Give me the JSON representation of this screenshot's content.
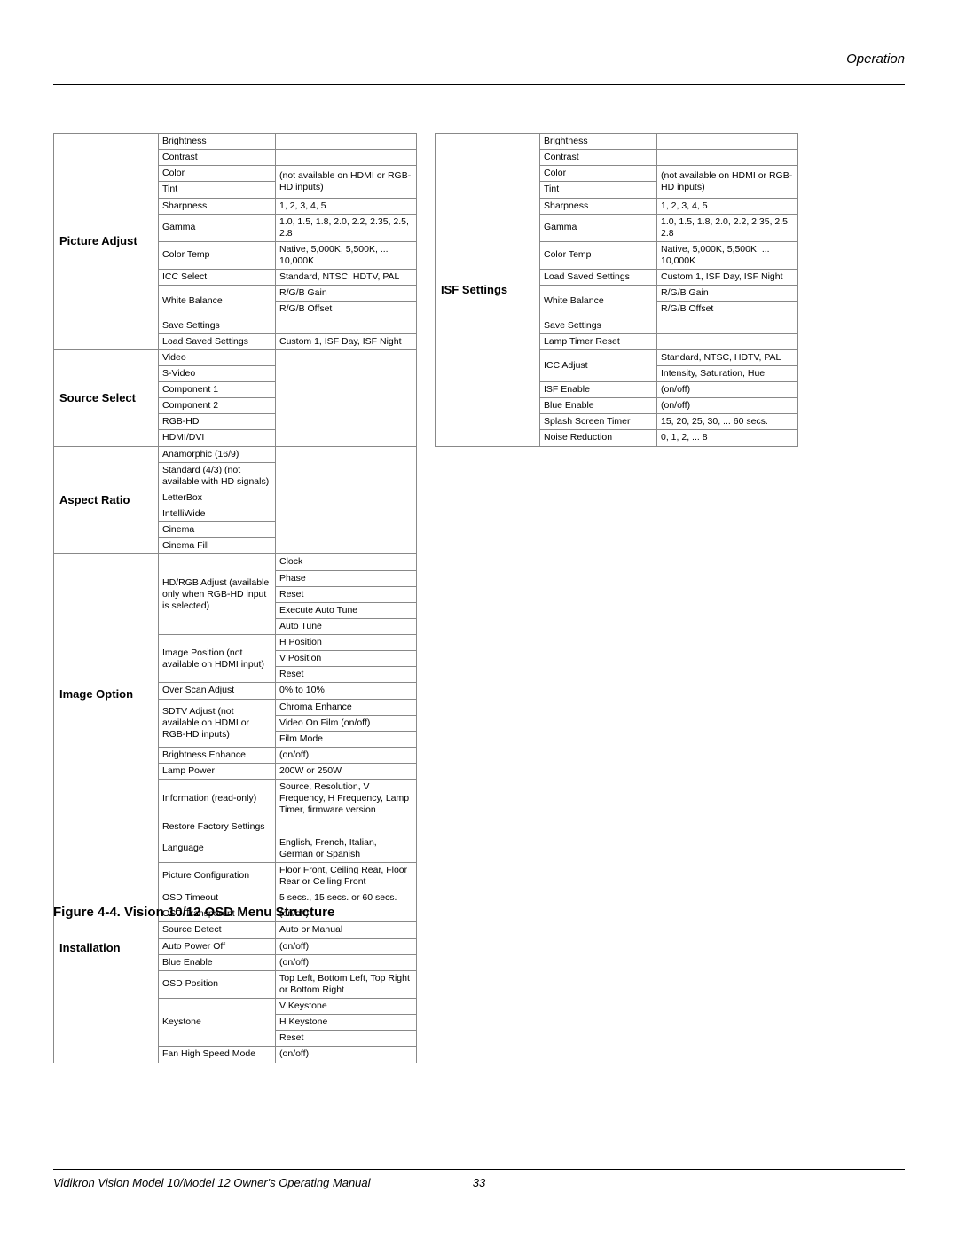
{
  "header": {
    "label": "Operation"
  },
  "footer": {
    "left": "Vidikron Vision Model 10/Model 12 Owner's Operating Manual",
    "page": "33"
  },
  "caption": "Figure 4-4. Vision 10/12 OSD Menu Structure",
  "left_sections": [
    {
      "title": "Picture Adjust",
      "rows": [
        {
          "name": "Brightness",
          "val": ""
        },
        {
          "name": "Contrast",
          "val": ""
        },
        {
          "name": "Color",
          "val": "(not available on HDMI or RGB-HD inputs)",
          "merge_val": 2
        },
        {
          "name": "Tint"
        },
        {
          "name": "Sharpness",
          "val": "1, 2, 3, 4, 5"
        },
        {
          "name": "Gamma",
          "val": "1.0, 1.5, 1.8, 2.0, 2.2, 2.35, 2.5, 2.8"
        },
        {
          "name": "Color Temp",
          "val": "Native, 5,000K, 5,500K, ... 10,000K"
        },
        {
          "name": "ICC Select",
          "val": "Standard, NTSC, HDTV, PAL"
        },
        {
          "name": "White Balance",
          "merge_name": 2,
          "val": "R/G/B Gain"
        },
        {
          "val": "R/G/B Offset"
        },
        {
          "name": "Save Settings",
          "val": ""
        },
        {
          "name": "Load Saved Settings",
          "val": "Custom 1, ISF Day, ISF Night"
        }
      ]
    },
    {
      "title": "Source Select",
      "rows": [
        {
          "name": "Video",
          "val": "",
          "merge_val": 6
        },
        {
          "name": "S-Video"
        },
        {
          "name": "Component 1"
        },
        {
          "name": "Component 2"
        },
        {
          "name": "RGB-HD"
        },
        {
          "name": "HDMI/DVI"
        }
      ]
    },
    {
      "title": "Aspect Ratio",
      "rows": [
        {
          "name": "Anamorphic (16/9)",
          "val": "",
          "merge_val": 6
        },
        {
          "name": "Standard (4/3) (not available with HD signals)"
        },
        {
          "name": "LetterBox"
        },
        {
          "name": "IntelliWide"
        },
        {
          "name": "Cinema"
        },
        {
          "name": "Cinema Fill"
        }
      ]
    },
    {
      "title": "Image Option",
      "rows": [
        {
          "name": "HD/RGB Adjust (available only when RGB-HD input is selected)",
          "merge_name": 5,
          "val": "Clock"
        },
        {
          "val": "Phase"
        },
        {
          "val": "Reset"
        },
        {
          "val": "Execute Auto Tune"
        },
        {
          "val": "Auto Tune"
        },
        {
          "name": "Image Position (not available on HDMI input)",
          "merge_name": 3,
          "val": "H Position"
        },
        {
          "val": "V Position"
        },
        {
          "val": "Reset"
        },
        {
          "name": "Over Scan Adjust",
          "val": "0% to 10%"
        },
        {
          "name": "SDTV Adjust (not available on HDMI or RGB-HD inputs)",
          "merge_name": 3,
          "val": "Chroma Enhance"
        },
        {
          "val": "Video On Film (on/off)"
        },
        {
          "val": "Film Mode"
        },
        {
          "name": "Brightness Enhance",
          "val": "(on/off)"
        },
        {
          "name": "Lamp Power",
          "val": "200W or 250W"
        },
        {
          "name": "Information (read-only)",
          "val": "Source, Resolution, V Frequency, H Frequency, Lamp Timer, firmware version"
        },
        {
          "name": "Restore Factory Settings",
          "val": ""
        }
      ]
    },
    {
      "title": "Installation",
      "rows": [
        {
          "name": "Language",
          "val": "English, French, Italian, German or Spanish"
        },
        {
          "name": "Picture Configuration",
          "val": "Floor Front, Ceiling Rear, Floor Rear or Ceiling Front"
        },
        {
          "name": "OSD Timeout",
          "val": "5 secs., 15 secs. or 60 secs."
        },
        {
          "name": "OSD Transparent",
          "val": "(on/off)"
        },
        {
          "name": "Source Detect",
          "val": "Auto or Manual"
        },
        {
          "name": "Auto Power Off",
          "val": "(on/off)"
        },
        {
          "name": "Blue Enable",
          "val": "(on/off)"
        },
        {
          "name": "OSD Position",
          "val": "Top Left, Bottom Left, Top Right or Bottom Right"
        },
        {
          "name": "Keystone",
          "merge_name": 3,
          "val": "V Keystone"
        },
        {
          "val": "H Keystone"
        },
        {
          "val": "Reset"
        },
        {
          "name": "Fan High Speed Mode",
          "val": "(on/off)"
        }
      ]
    }
  ],
  "right_sections": [
    {
      "title": "ISF Settings",
      "rows": [
        {
          "name": "Brightness",
          "val": ""
        },
        {
          "name": "Contrast",
          "val": ""
        },
        {
          "name": "Color",
          "val": "(not available on HDMI or RGB-HD inputs)",
          "merge_val": 2
        },
        {
          "name": "Tint"
        },
        {
          "name": "Sharpness",
          "val": "1, 2, 3, 4, 5"
        },
        {
          "name": "Gamma",
          "val": "1.0, 1.5, 1.8, 2.0, 2.2, 2.35, 2.5, 2.8"
        },
        {
          "name": "Color Temp",
          "val": "Native, 5,000K, 5,500K, ... 10,000K"
        },
        {
          "name": "Load Saved Settings",
          "val": "Custom 1, ISF Day, ISF Night"
        },
        {
          "name": "White Balance",
          "merge_name": 2,
          "val": "R/G/B Gain"
        },
        {
          "val": "R/G/B Offset"
        },
        {
          "name": "Save Settings",
          "val": ""
        },
        {
          "name": "Lamp Timer Reset",
          "val": ""
        },
        {
          "name": "ICC Adjust",
          "merge_name": 2,
          "val": "Standard, NTSC, HDTV, PAL"
        },
        {
          "val": "Intensity, Saturation, Hue"
        },
        {
          "name": "ISF Enable",
          "val": "(on/off)"
        },
        {
          "name": "Blue Enable",
          "val": "(on/off)"
        },
        {
          "name": "Splash Screen Timer",
          "val": "15, 20, 25, 30, ... 60 secs."
        },
        {
          "name": "Noise Reduction",
          "val": "0, 1, 2, ... 8"
        }
      ]
    }
  ]
}
